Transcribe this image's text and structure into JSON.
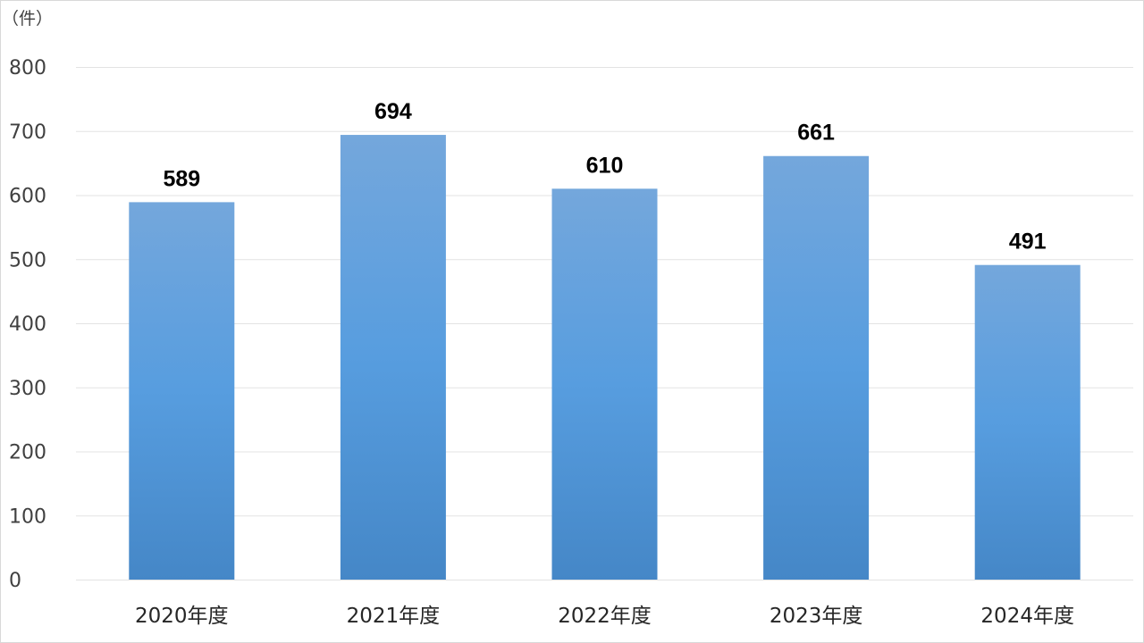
{
  "chart_data": {
    "type": "bar",
    "categories": [
      "2020年度",
      "2021年度",
      "2022年度",
      "2023年度",
      "2024年度"
    ],
    "values": [
      589,
      694,
      610,
      661,
      491
    ],
    "data_labels": [
      "589",
      "694",
      "610",
      "661",
      "491"
    ],
    "ylabel": "（件）",
    "ylim": [
      0,
      800
    ],
    "yticks": [
      "0",
      "100",
      "200",
      "300",
      "400",
      "500",
      "600",
      "700",
      "800"
    ],
    "grid": true,
    "legend": "none",
    "colors": {
      "bar_top": "#74a7dc",
      "bar_mid": "#579ddf",
      "bar_bottom": "#4587c7"
    }
  }
}
